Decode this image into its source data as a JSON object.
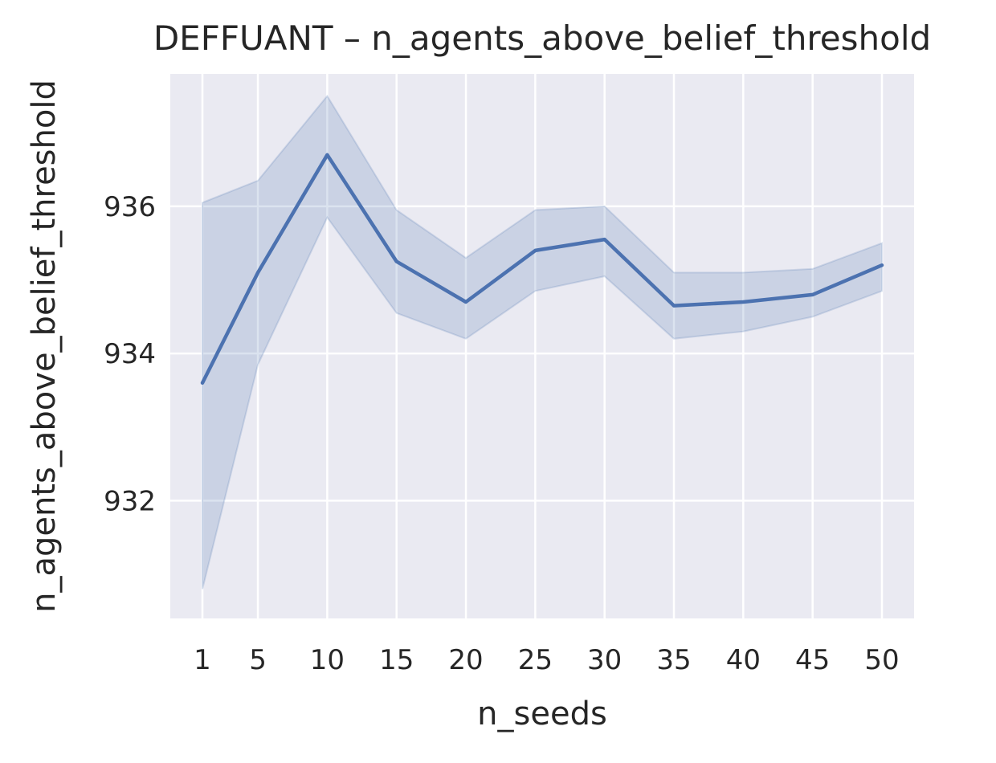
{
  "chart_data": {
    "type": "line",
    "title": "DEFFUANT – n_agents_above_belief_threshold",
    "xlabel": "n_seeds",
    "ylabel": "n_agents_above_belief_threshold",
    "x": [
      1,
      5,
      10,
      15,
      20,
      25,
      30,
      35,
      40,
      45,
      50
    ],
    "x_ticks": [
      1,
      5,
      10,
      15,
      20,
      25,
      30,
      35,
      40,
      45,
      50
    ],
    "y_ticks": [
      932,
      934,
      936
    ],
    "ylim": [
      930.4,
      937.8
    ],
    "series": [
      {
        "values": [
          933.6,
          935.1,
          936.7,
          935.25,
          934.7,
          935.4,
          935.55,
          934.65,
          934.7,
          934.8,
          935.2
        ],
        "ci_upper": [
          936.05,
          936.35,
          937.5,
          935.95,
          935.3,
          935.95,
          936.0,
          935.1,
          935.1,
          935.15,
          935.5
        ],
        "ci_lower": [
          930.8,
          933.85,
          935.85,
          934.55,
          934.2,
          934.85,
          935.05,
          934.2,
          934.3,
          934.5,
          934.85
        ]
      }
    ],
    "grid": true,
    "colors": {
      "line": "#4c72b0",
      "band": "#4c72b0",
      "background": "#eaeaf2",
      "grid": "#ffffff"
    }
  }
}
